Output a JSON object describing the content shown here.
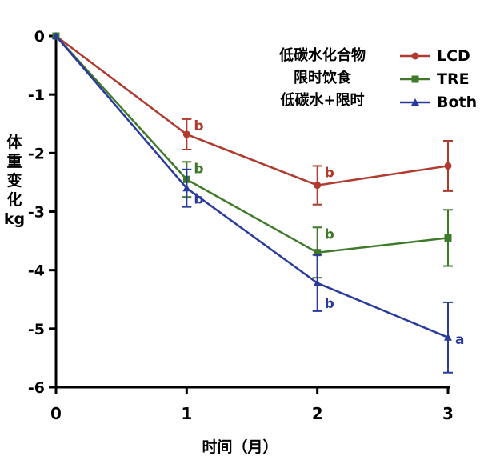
{
  "chart_data": {
    "type": "line",
    "x": [
      0,
      1,
      2,
      3
    ],
    "xlabel": "时间（月）",
    "ylabel_chars": [
      "体",
      "重",
      "变",
      "化",
      "kg"
    ],
    "ylim": [
      -6,
      0
    ],
    "xlim": [
      0,
      3
    ],
    "yticks": [
      "0",
      "-1",
      "-2",
      "-3",
      "-4",
      "-5",
      "-6"
    ],
    "xticks": [
      "0",
      "1",
      "2",
      "3"
    ],
    "legend_placement": "top-right",
    "legend_descriptions": [
      "低碳水化合物",
      "限时饮食",
      "低碳水+限时"
    ],
    "series": [
      {
        "name": "LCD",
        "color": "#b03a2e",
        "marker": "circle",
        "values": [
          0,
          -1.68,
          -2.55,
          -2.22
        ],
        "error": [
          0,
          0.26,
          0.33,
          0.43
        ],
        "letters": [
          "",
          "b",
          "b",
          ""
        ]
      },
      {
        "name": "TRE",
        "color": "#3f7a2b",
        "marker": "square",
        "values": [
          0,
          -2.45,
          -3.7,
          -3.45
        ],
        "error": [
          0,
          0.3,
          0.43,
          0.48
        ],
        "letters": [
          "",
          "b",
          "b",
          ""
        ]
      },
      {
        "name": "Both",
        "color": "#2a3a9c",
        "marker": "triangle",
        "values": [
          0,
          -2.6,
          -4.22,
          -5.15
        ],
        "error": [
          0,
          0.32,
          0.48,
          0.6
        ],
        "letters": [
          "",
          "b",
          "b",
          "a"
        ]
      }
    ]
  }
}
